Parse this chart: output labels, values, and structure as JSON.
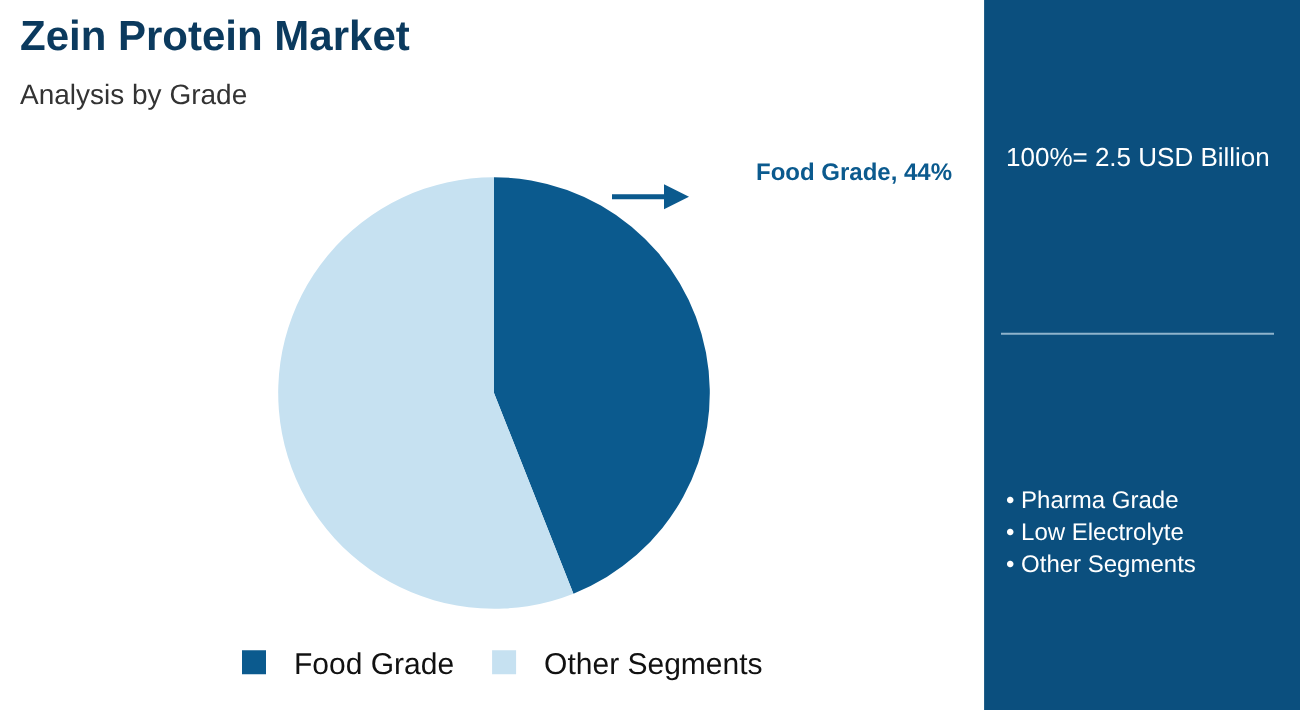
{
  "chart_data": {
    "type": "pie",
    "title": "Zein Protein Market",
    "subtitle": "Analysis by Grade",
    "categories": [
      "Food Grade",
      "Other Segments"
    ],
    "values": [
      44,
      56
    ],
    "colors": [
      "#0b5a8e",
      "#c6e1f1"
    ],
    "value_labels": [
      "Food Grade, 44%",
      null
    ],
    "legend": "bottom",
    "annotations": [
      "100%= 2.5 USD Billion",
      "• Pharma Grade",
      "• Low Electrolyte",
      "• Other Segments"
    ]
  }
}
